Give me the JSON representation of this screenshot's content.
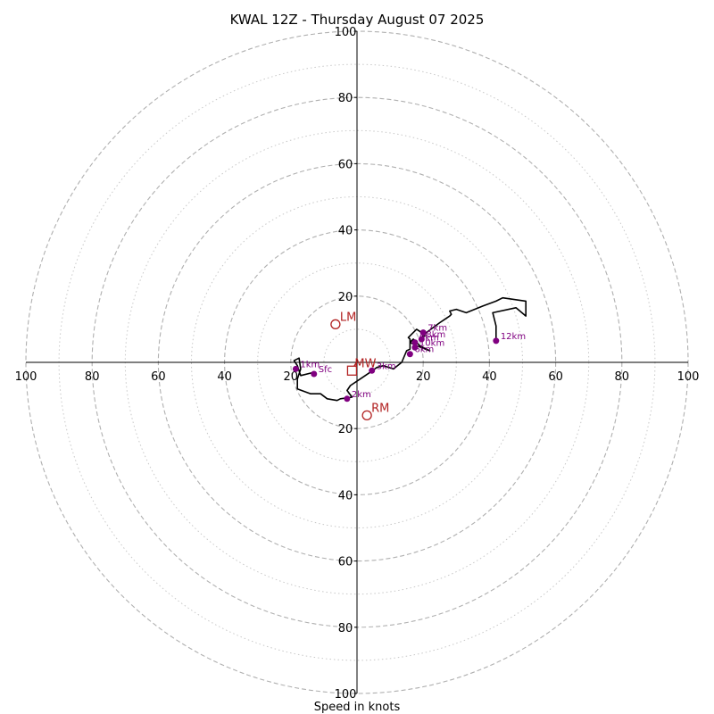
{
  "chart_data": {
    "type": "hodograph",
    "title": "KWAL 12Z - Thursday August 07 2025",
    "xlabel": "Speed in knots",
    "xlim": [
      -100,
      100
    ],
    "ylim": [
      -100,
      100
    ],
    "major_rings": [
      20,
      40,
      60,
      80,
      100
    ],
    "minor_rings": [
      10,
      30,
      50,
      70,
      90
    ],
    "tick_labels": [
      "20",
      "40",
      "60",
      "80",
      "100"
    ],
    "grid": true,
    "colors": {
      "trace": "#000000",
      "height_points": "#800080",
      "motion_markers": "#b22222",
      "major_ring": "#b0b0b0",
      "minor_ring": "#c8c8c8"
    },
    "trace": [
      [
        -13,
        -3
      ],
      [
        -17,
        -4
      ],
      [
        -18,
        -1
      ],
      [
        -19,
        0.5
      ],
      [
        -17.5,
        1.3
      ],
      [
        -17,
        -2
      ],
      [
        -18,
        -5
      ],
      [
        -18,
        -8
      ],
      [
        -14,
        -9.5
      ],
      [
        -11,
        -9.5
      ],
      [
        -9,
        -11
      ],
      [
        -6,
        -11.5
      ],
      [
        -5,
        -11
      ],
      [
        -1.5,
        -10.5
      ],
      [
        -3,
        -8.5
      ],
      [
        -2,
        -7
      ],
      [
        1,
        -5
      ],
      [
        4,
        -3
      ],
      [
        6,
        -1.5
      ],
      [
        8,
        -1
      ],
      [
        11,
        -2
      ],
      [
        13.5,
        0
      ],
      [
        15,
        3.5
      ],
      [
        16,
        4
      ],
      [
        16,
        6
      ],
      [
        17,
        7
      ],
      [
        19,
        5
      ],
      [
        21,
        4
      ],
      [
        22,
        3.5
      ],
      [
        18,
        5
      ],
      [
        16,
        6
      ],
      [
        16,
        7
      ],
      [
        15.5,
        7.5
      ],
      [
        17,
        9
      ],
      [
        18,
        10
      ],
      [
        19.5,
        9
      ],
      [
        20.5,
        8
      ],
      [
        19,
        7
      ],
      [
        21,
        9
      ],
      [
        23,
        10.5
      ],
      [
        25,
        12
      ],
      [
        26.5,
        13
      ],
      [
        28,
        14
      ],
      [
        28.5,
        14.5
      ],
      [
        28,
        15.5
      ],
      [
        30,
        16
      ],
      [
        33,
        15
      ],
      [
        38,
        17
      ],
      [
        42,
        18.5
      ],
      [
        44,
        19.5
      ],
      [
        51,
        18.5
      ],
      [
        51,
        14
      ],
      [
        48,
        16.5
      ],
      [
        41,
        15
      ],
      [
        42,
        11
      ],
      [
        42,
        6.5
      ]
    ],
    "height_points": [
      {
        "label": "Sfc",
        "u": -13,
        "v": -3.5
      },
      {
        "label": "1km",
        "u": -18.5,
        "v": -2
      },
      {
        "label": "2km",
        "u": -3,
        "v": -11
      },
      {
        "label": "3km",
        "u": 4.5,
        "v": -2.5
      },
      {
        "label": "6km",
        "u": 16,
        "v": 2.5
      },
      {
        "label": "9km",
        "u": 17.5,
        "v": 6
      },
      {
        "label": "7km",
        "u": 20,
        "v": 9
      },
      {
        "label": "8km",
        "u": 19.5,
        "v": 7
      },
      {
        "label": "10km",
        "u": 17.5,
        "v": 4.5
      },
      {
        "label": "12km",
        "u": 42,
        "v": 6.5
      }
    ],
    "motion_markers": [
      {
        "label": "LM",
        "u": -6.5,
        "v": 11.5,
        "marker": "circle"
      },
      {
        "label": "RM",
        "u": 3,
        "v": -16,
        "marker": "circle"
      },
      {
        "label": "MW",
        "u": -1.5,
        "v": -2.5,
        "marker": "square"
      }
    ],
    "display_labels": {
      "9km": "9km",
      "8km": "8km",
      "10km": "10km"
    }
  }
}
